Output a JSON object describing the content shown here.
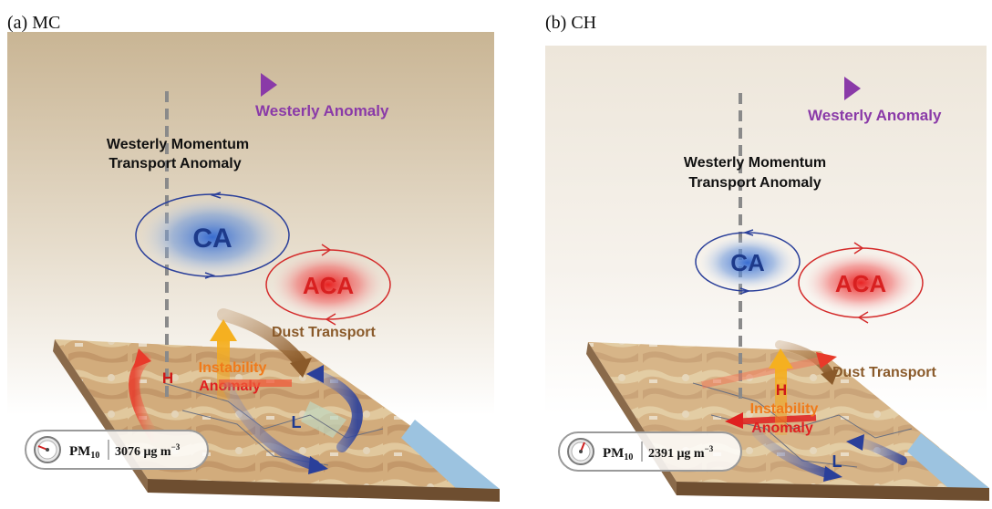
{
  "panels": [
    {
      "title": "(a) MC",
      "westerly_anomaly": "Westerly Anomaly",
      "momentum_line1": "Westerly Momentum",
      "momentum_line2": "Transport Anomaly",
      "ca": "CA",
      "aca": "ACA",
      "dust_transport": "Dust Transport",
      "instability_line1": "Instability",
      "instability_line2": "Anomaly",
      "high": "H",
      "low": "L",
      "pm_label": "PM",
      "pm_sub": "10",
      "pm_value": "3076 μg m",
      "pm_unit_exp": "−3"
    },
    {
      "title": "(b) CH",
      "westerly_anomaly": "Westerly Anomaly",
      "momentum_line1": "Westerly Momentum",
      "momentum_line2": "Transport Anomaly",
      "ca": "CA",
      "aca": "ACA",
      "dust_transport": "Dust Transport",
      "instability_line1": "Instability",
      "instability_line2": "Anomaly",
      "high": "H",
      "low": "L",
      "pm_label": "PM",
      "pm_sub": "10",
      "pm_value": "2391 μg m",
      "pm_unit_exp": "−3"
    }
  ],
  "colors": {
    "westerly": "#8a3aa8",
    "ca_ring": "#2a3f9a",
    "ca_text": "#1d3a8a",
    "aca_ring": "#d42a2a",
    "aca_text": "#d82020",
    "dust": "#8a5a2a",
    "instability": "#f07a1a",
    "anomaly": "#e02020",
    "high": "#d01818",
    "low": "#1f3a90"
  }
}
